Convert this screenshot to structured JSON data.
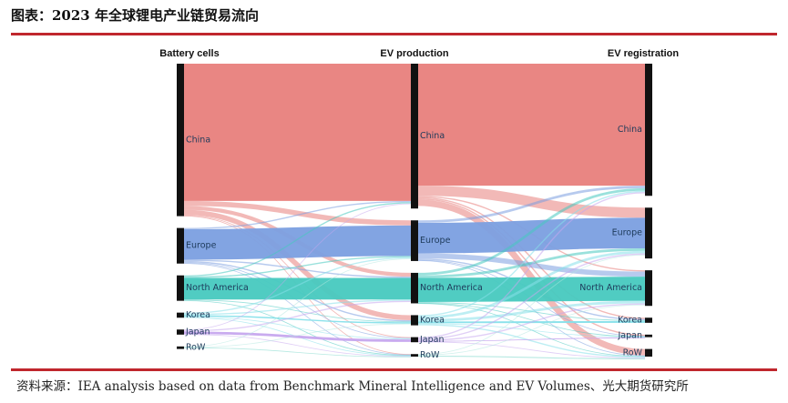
{
  "title": "图表：2023 年全球锂电产业链贸易流向",
  "source": "资料来源：IEA analysis based on data from Benchmark Mineral Intelligence and EV Volumes、光大期货研究所",
  "columns": [
    "Battery cells",
    "EV production",
    "EV registration"
  ],
  "stages": [
    [
      {
        "id": "china",
        "label": "China",
        "value": 60
      },
      {
        "id": "europe",
        "label": "Europe",
        "value": 14
      },
      {
        "id": "na",
        "label": "North America",
        "value": 10
      },
      {
        "id": "korea",
        "label": "Korea",
        "value": 2
      },
      {
        "id": "japan",
        "label": "Japan",
        "value": 2
      },
      {
        "id": "row",
        "label": "RoW",
        "value": 1
      }
    ],
    [
      {
        "id": "china",
        "label": "China",
        "value": 57
      },
      {
        "id": "europe",
        "label": "Europe",
        "value": 16
      },
      {
        "id": "na",
        "label": "North America",
        "value": 12
      },
      {
        "id": "korea",
        "label": "Korea",
        "value": 4
      },
      {
        "id": "japan",
        "label": "Japan",
        "value": 2
      },
      {
        "id": "row",
        "label": "RoW",
        "value": 1
      }
    ],
    [
      {
        "id": "china",
        "label": "China",
        "value": 52
      },
      {
        "id": "europe",
        "label": "Europe",
        "value": 20
      },
      {
        "id": "na",
        "label": "North America",
        "value": 14
      },
      {
        "id": "korea",
        "label": "Korea",
        "value": 2
      },
      {
        "id": "japan",
        "label": "Japan",
        "value": 1
      },
      {
        "id": "row",
        "label": "RoW",
        "value": 3
      }
    ]
  ],
  "links": [
    [
      {
        "from": "china",
        "to": "china",
        "value": 54
      },
      {
        "from": "china",
        "to": "europe",
        "value": 2
      },
      {
        "from": "china",
        "to": "na",
        "value": 1.5
      },
      {
        "from": "china",
        "to": "korea",
        "value": 2
      },
      {
        "from": "china",
        "to": "japan",
        "value": 0.3
      },
      {
        "from": "china",
        "to": "row",
        "value": 0.2
      },
      {
        "from": "europe",
        "to": "china",
        "value": 0.5
      },
      {
        "from": "europe",
        "to": "europe",
        "value": 12
      },
      {
        "from": "europe",
        "to": "na",
        "value": 0.5
      },
      {
        "from": "europe",
        "to": "korea",
        "value": 0.5
      },
      {
        "from": "europe",
        "to": "japan",
        "value": 0.3
      },
      {
        "from": "europe",
        "to": "row",
        "value": 0.2
      },
      {
        "from": "na",
        "to": "china",
        "value": 0.5
      },
      {
        "from": "na",
        "to": "europe",
        "value": 0.5
      },
      {
        "from": "na",
        "to": "na",
        "value": 8.5
      },
      {
        "from": "na",
        "to": "korea",
        "value": 0.3
      },
      {
        "from": "na",
        "to": "row",
        "value": 0.2
      },
      {
        "from": "korea",
        "to": "europe",
        "value": 0.5
      },
      {
        "from": "korea",
        "to": "na",
        "value": 0.5
      },
      {
        "from": "korea",
        "to": "korea",
        "value": 0.5
      },
      {
        "from": "korea",
        "to": "japan",
        "value": 0.3
      },
      {
        "from": "korea",
        "to": "row",
        "value": 0.2
      },
      {
        "from": "japan",
        "to": "china",
        "value": 0.3
      },
      {
        "from": "japan",
        "to": "na",
        "value": 0.5
      },
      {
        "from": "japan",
        "to": "japan",
        "value": 1.0
      },
      {
        "from": "japan",
        "to": "row",
        "value": 0.2
      },
      {
        "from": "row",
        "to": "europe",
        "value": 0.2
      },
      {
        "from": "row",
        "to": "korea",
        "value": 0.2
      },
      {
        "from": "row",
        "to": "row",
        "value": 0.2
      }
    ],
    [
      {
        "from": "china",
        "to": "china",
        "value": 48
      },
      {
        "from": "china",
        "to": "europe",
        "value": 4
      },
      {
        "from": "china",
        "to": "na",
        "value": 0.5
      },
      {
        "from": "china",
        "to": "korea",
        "value": 0.5
      },
      {
        "from": "china",
        "to": "japan",
        "value": 0.5
      },
      {
        "from": "china",
        "to": "row",
        "value": 2.5
      },
      {
        "from": "europe",
        "to": "china",
        "value": 1
      },
      {
        "from": "europe",
        "to": "europe",
        "value": 12
      },
      {
        "from": "europe",
        "to": "na",
        "value": 2
      },
      {
        "from": "europe",
        "to": "korea",
        "value": 0.5
      },
      {
        "from": "europe",
        "to": "japan",
        "value": 0.2
      },
      {
        "from": "europe",
        "to": "row",
        "value": 0.3
      },
      {
        "from": "na",
        "to": "china",
        "value": 1
      },
      {
        "from": "na",
        "to": "europe",
        "value": 1
      },
      {
        "from": "na",
        "to": "na",
        "value": 9.5
      },
      {
        "from": "na",
        "to": "korea",
        "value": 0.3
      },
      {
        "from": "na",
        "to": "japan",
        "value": 0.1
      },
      {
        "from": "na",
        "to": "row",
        "value": 0.1
      },
      {
        "from": "korea",
        "to": "china",
        "value": 0.5
      },
      {
        "from": "korea",
        "to": "europe",
        "value": 1
      },
      {
        "from": "korea",
        "to": "na",
        "value": 1
      },
      {
        "from": "korea",
        "to": "korea",
        "value": 0.7
      },
      {
        "from": "korea",
        "to": "japan",
        "value": 0.3
      },
      {
        "from": "korea",
        "to": "row",
        "value": 0.5
      },
      {
        "from": "japan",
        "to": "china",
        "value": 0.5
      },
      {
        "from": "japan",
        "to": "europe",
        "value": 0.5
      },
      {
        "from": "japan",
        "to": "na",
        "value": 0.5
      },
      {
        "from": "japan",
        "to": "japan",
        "value": 0.2
      },
      {
        "from": "japan",
        "to": "row",
        "value": 0.3
      },
      {
        "from": "row",
        "to": "europe",
        "value": 0.3
      },
      {
        "from": "row",
        "to": "na",
        "value": 0.3
      },
      {
        "from": "row",
        "to": "row",
        "value": 0.4
      }
    ]
  ],
  "colors": {
    "china": "#e8807c",
    "europe": "#7b9fe0",
    "na": "#47c9bf",
    "korea": "#86e0ea",
    "japan": "#c6a7ee",
    "row": "#b3e8e0",
    "node_bar": "#111111"
  }
}
